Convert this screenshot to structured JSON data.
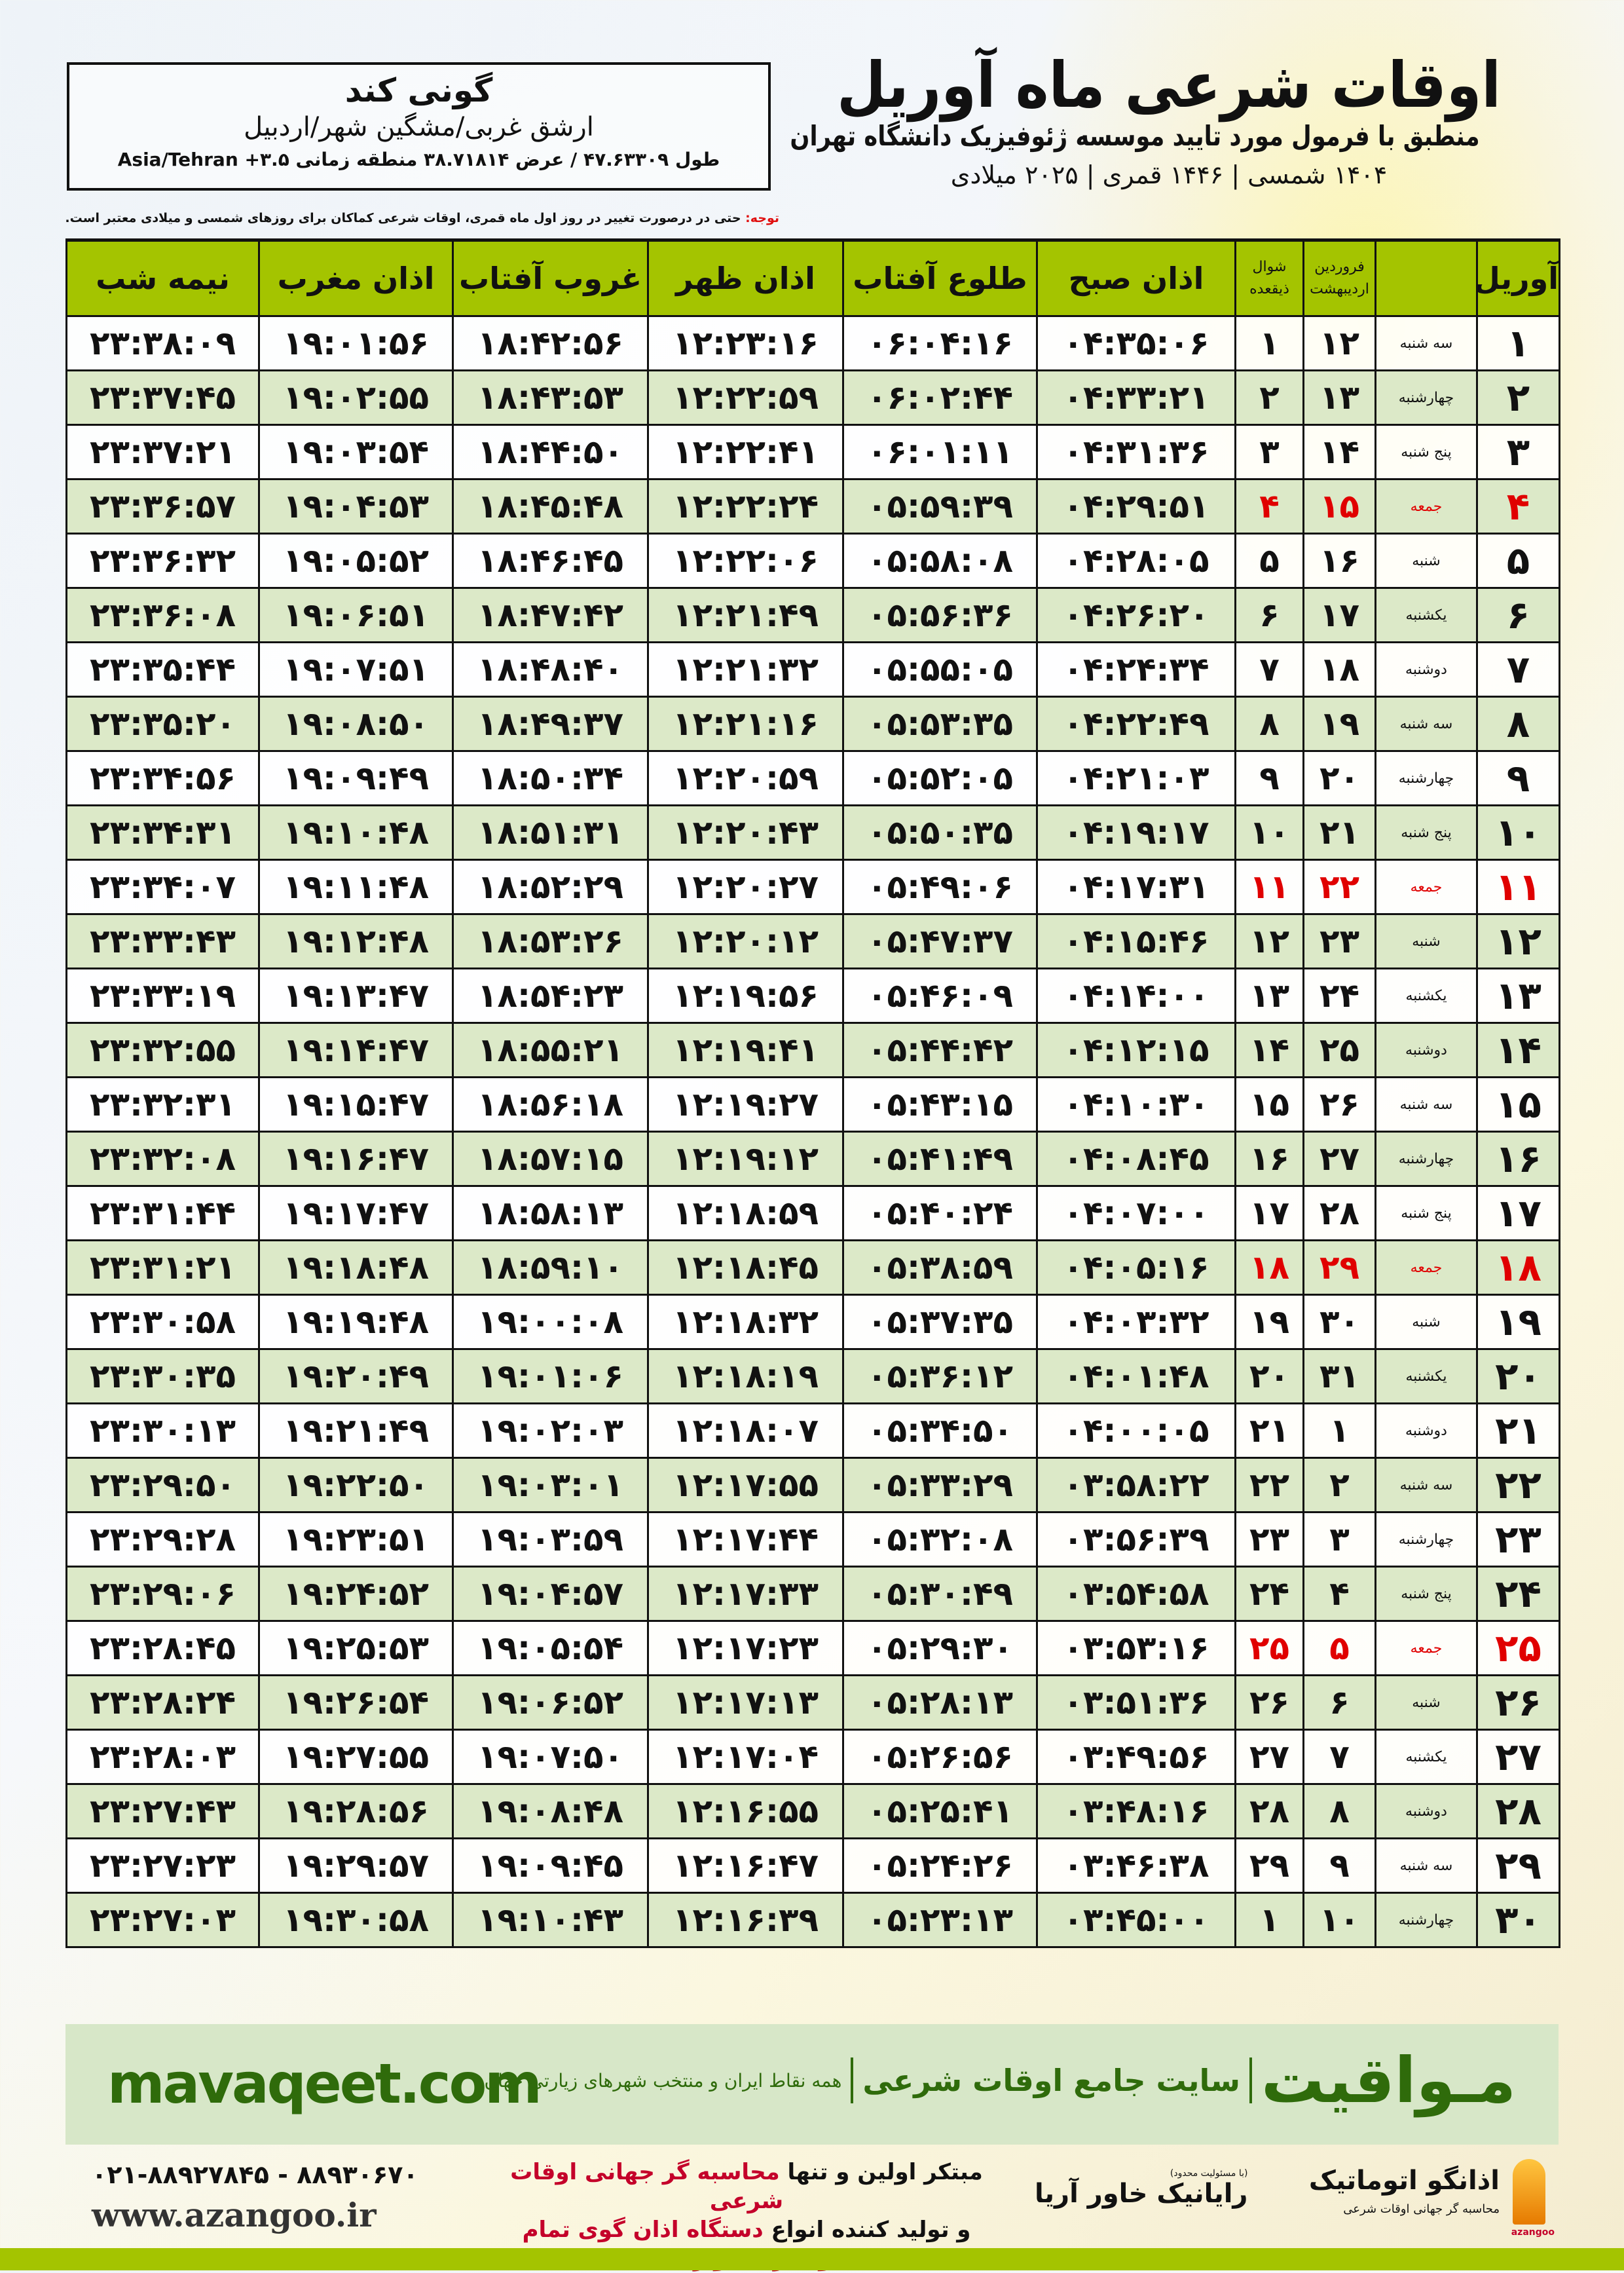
{
  "colors": {
    "header_green": "#a4c400",
    "row_green": "#dce9c8",
    "friday_red": "#e00000",
    "brand_green": "#2f6b0b",
    "promo_red": "#c4002a"
  },
  "location": {
    "city": "گونی کند",
    "region": "ارشق غربی/مشگین شهر/اردبیل",
    "coords": "طول ۴۷.۶۳۳۰۹ / عرض ۳۸.۷۱۸۱۴ منطقه زمانی ۳.۵+ Asia/Tehran"
  },
  "header": {
    "title": "اوقات شرعی ماه آوریل",
    "subtitle": "منطبق با فرمول مورد تایید موسسه ژئوفیزیک دانشگاه تهران",
    "years": "۱۴۰۴ شمسی | ۱۴۴۶ قمری | ۲۰۲۵ میلادی"
  },
  "note": {
    "label": "توجه:",
    "text": " حتی در درصورت تغییر در روز اول ماه قمری، اوقات شرعی کماکان برای روزهای شمسی و میلادی معتبر است."
  },
  "table": {
    "columns": {
      "day": "آوریل",
      "persian_1": "فروردین",
      "persian_2": "اردیبهشت",
      "hijri_1": "شوال",
      "hijri_2": "ذیقعده",
      "fajr": "اذان صبح",
      "sunrise": "طلوع آفتاب",
      "dhuhr": "اذان ظهر",
      "sunset": "غروب آفتاب",
      "maghrib": "اذان مغرب",
      "midnight": "نیمه شب"
    },
    "rows": [
      [
        "۱",
        "سه شنبه",
        "۱۲",
        "۱",
        "۰۴:۳۵:۰۶",
        "۰۶:۰۴:۱۶",
        "۱۲:۲۳:۱۶",
        "۱۸:۴۲:۵۶",
        "۱۹:۰۱:۵۶",
        "۲۳:۳۸:۰۹"
      ],
      [
        "۲",
        "چهارشنبه",
        "۱۳",
        "۲",
        "۰۴:۳۳:۲۱",
        "۰۶:۰۲:۴۴",
        "۱۲:۲۲:۵۹",
        "۱۸:۴۳:۵۳",
        "۱۹:۰۲:۵۵",
        "۲۳:۳۷:۴۵"
      ],
      [
        "۳",
        "پنج شنبه",
        "۱۴",
        "۳",
        "۰۴:۳۱:۳۶",
        "۰۶:۰۱:۱۱",
        "۱۲:۲۲:۴۱",
        "۱۸:۴۴:۵۰",
        "۱۹:۰۳:۵۴",
        "۲۳:۳۷:۲۱"
      ],
      [
        "۴",
        "جمعه",
        "۱۵",
        "۴",
        "۰۴:۲۹:۵۱",
        "۰۵:۵۹:۳۹",
        "۱۲:۲۲:۲۴",
        "۱۸:۴۵:۴۸",
        "۱۹:۰۴:۵۳",
        "۲۳:۳۶:۵۷"
      ],
      [
        "۵",
        "شنبه",
        "۱۶",
        "۵",
        "۰۴:۲۸:۰۵",
        "۰۵:۵۸:۰۸",
        "۱۲:۲۲:۰۶",
        "۱۸:۴۶:۴۵",
        "۱۹:۰۵:۵۲",
        "۲۳:۳۶:۳۲"
      ],
      [
        "۶",
        "یکشنبه",
        "۱۷",
        "۶",
        "۰۴:۲۶:۲۰",
        "۰۵:۵۶:۳۶",
        "۱۲:۲۱:۴۹",
        "۱۸:۴۷:۴۲",
        "۱۹:۰۶:۵۱",
        "۲۳:۳۶:۰۸"
      ],
      [
        "۷",
        "دوشنبه",
        "۱۸",
        "۷",
        "۰۴:۲۴:۳۴",
        "۰۵:۵۵:۰۵",
        "۱۲:۲۱:۳۲",
        "۱۸:۴۸:۴۰",
        "۱۹:۰۷:۵۱",
        "۲۳:۳۵:۴۴"
      ],
      [
        "۸",
        "سه شنبه",
        "۱۹",
        "۸",
        "۰۴:۲۲:۴۹",
        "۰۵:۵۳:۳۵",
        "۱۲:۲۱:۱۶",
        "۱۸:۴۹:۳۷",
        "۱۹:۰۸:۵۰",
        "۲۳:۳۵:۲۰"
      ],
      [
        "۹",
        "چهارشنبه",
        "۲۰",
        "۹",
        "۰۴:۲۱:۰۳",
        "۰۵:۵۲:۰۵",
        "۱۲:۲۰:۵۹",
        "۱۸:۵۰:۳۴",
        "۱۹:۰۹:۴۹",
        "۲۳:۳۴:۵۶"
      ],
      [
        "۱۰",
        "پنج شنبه",
        "۲۱",
        "۱۰",
        "۰۴:۱۹:۱۷",
        "۰۵:۵۰:۳۵",
        "۱۲:۲۰:۴۳",
        "۱۸:۵۱:۳۱",
        "۱۹:۱۰:۴۸",
        "۲۳:۳۴:۳۱"
      ],
      [
        "۱۱",
        "جمعه",
        "۲۲",
        "۱۱",
        "۰۴:۱۷:۳۱",
        "۰۵:۴۹:۰۶",
        "۱۲:۲۰:۲۷",
        "۱۸:۵۲:۲۹",
        "۱۹:۱۱:۴۸",
        "۲۳:۳۴:۰۷"
      ],
      [
        "۱۲",
        "شنبه",
        "۲۳",
        "۱۲",
        "۰۴:۱۵:۴۶",
        "۰۵:۴۷:۳۷",
        "۱۲:۲۰:۱۲",
        "۱۸:۵۳:۲۶",
        "۱۹:۱۲:۴۸",
        "۲۳:۳۳:۴۳"
      ],
      [
        "۱۳",
        "یکشنبه",
        "۲۴",
        "۱۳",
        "۰۴:۱۴:۰۰",
        "۰۵:۴۶:۰۹",
        "۱۲:۱۹:۵۶",
        "۱۸:۵۴:۲۳",
        "۱۹:۱۳:۴۷",
        "۲۳:۳۳:۱۹"
      ],
      [
        "۱۴",
        "دوشنبه",
        "۲۵",
        "۱۴",
        "۰۴:۱۲:۱۵",
        "۰۵:۴۴:۴۲",
        "۱۲:۱۹:۴۱",
        "۱۸:۵۵:۲۱",
        "۱۹:۱۴:۴۷",
        "۲۳:۳۲:۵۵"
      ],
      [
        "۱۵",
        "سه شنبه",
        "۲۶",
        "۱۵",
        "۰۴:۱۰:۳۰",
        "۰۵:۴۳:۱۵",
        "۱۲:۱۹:۲۷",
        "۱۸:۵۶:۱۸",
        "۱۹:۱۵:۴۷",
        "۲۳:۳۲:۳۱"
      ],
      [
        "۱۶",
        "چهارشنبه",
        "۲۷",
        "۱۶",
        "۰۴:۰۸:۴۵",
        "۰۵:۴۱:۴۹",
        "۱۲:۱۹:۱۲",
        "۱۸:۵۷:۱۵",
        "۱۹:۱۶:۴۷",
        "۲۳:۳۲:۰۸"
      ],
      [
        "۱۷",
        "پنج شنبه",
        "۲۸",
        "۱۷",
        "۰۴:۰۷:۰۰",
        "۰۵:۴۰:۲۴",
        "۱۲:۱۸:۵۹",
        "۱۸:۵۸:۱۳",
        "۱۹:۱۷:۴۷",
        "۲۳:۳۱:۴۴"
      ],
      [
        "۱۸",
        "جمعه",
        "۲۹",
        "۱۸",
        "۰۴:۰۵:۱۶",
        "۰۵:۳۸:۵۹",
        "۱۲:۱۸:۴۵",
        "۱۸:۵۹:۱۰",
        "۱۹:۱۸:۴۸",
        "۲۳:۳۱:۲۱"
      ],
      [
        "۱۹",
        "شنبه",
        "۳۰",
        "۱۹",
        "۰۴:۰۳:۳۲",
        "۰۵:۳۷:۳۵",
        "۱۲:۱۸:۳۲",
        "۱۹:۰۰:۰۸",
        "۱۹:۱۹:۴۸",
        "۲۳:۳۰:۵۸"
      ],
      [
        "۲۰",
        "یکشنبه",
        "۳۱",
        "۲۰",
        "۰۴:۰۱:۴۸",
        "۰۵:۳۶:۱۲",
        "۱۲:۱۸:۱۹",
        "۱۹:۰۱:۰۶",
        "۱۹:۲۰:۴۹",
        "۲۳:۳۰:۳۵"
      ],
      [
        "۲۱",
        "دوشنبه",
        "۱",
        "۲۱",
        "۰۴:۰۰:۰۵",
        "۰۵:۳۴:۵۰",
        "۱۲:۱۸:۰۷",
        "۱۹:۰۲:۰۳",
        "۱۹:۲۱:۴۹",
        "۲۳:۳۰:۱۳"
      ],
      [
        "۲۲",
        "سه شنبه",
        "۲",
        "۲۲",
        "۰۳:۵۸:۲۲",
        "۰۵:۳۳:۲۹",
        "۱۲:۱۷:۵۵",
        "۱۹:۰۳:۰۱",
        "۱۹:۲۲:۵۰",
        "۲۳:۲۹:۵۰"
      ],
      [
        "۲۳",
        "چهارشنبه",
        "۳",
        "۲۳",
        "۰۳:۵۶:۳۹",
        "۰۵:۳۲:۰۸",
        "۱۲:۱۷:۴۴",
        "۱۹:۰۳:۵۹",
        "۱۹:۲۳:۵۱",
        "۲۳:۲۹:۲۸"
      ],
      [
        "۲۴",
        "پنج شنبه",
        "۴",
        "۲۴",
        "۰۳:۵۴:۵۸",
        "۰۵:۳۰:۴۹",
        "۱۲:۱۷:۳۳",
        "۱۹:۰۴:۵۷",
        "۱۹:۲۴:۵۲",
        "۲۳:۲۹:۰۶"
      ],
      [
        "۲۵",
        "جمعه",
        "۵",
        "۲۵",
        "۰۳:۵۳:۱۶",
        "۰۵:۲۹:۳۰",
        "۱۲:۱۷:۲۳",
        "۱۹:۰۵:۵۴",
        "۱۹:۲۵:۵۳",
        "۲۳:۲۸:۴۵"
      ],
      [
        "۲۶",
        "شنبه",
        "۶",
        "۲۶",
        "۰۳:۵۱:۳۶",
        "۰۵:۲۸:۱۳",
        "۱۲:۱۷:۱۳",
        "۱۹:۰۶:۵۲",
        "۱۹:۲۶:۵۴",
        "۲۳:۲۸:۲۴"
      ],
      [
        "۲۷",
        "یکشنبه",
        "۷",
        "۲۷",
        "۰۳:۴۹:۵۶",
        "۰۵:۲۶:۵۶",
        "۱۲:۱۷:۰۴",
        "۱۹:۰۷:۵۰",
        "۱۹:۲۷:۵۵",
        "۲۳:۲۸:۰۳"
      ],
      [
        "۲۸",
        "دوشنبه",
        "۸",
        "۲۸",
        "۰۳:۴۸:۱۶",
        "۰۵:۲۵:۴۱",
        "۱۲:۱۶:۵۵",
        "۱۹:۰۸:۴۸",
        "۱۹:۲۸:۵۶",
        "۲۳:۲۷:۴۳"
      ],
      [
        "۲۹",
        "سه شنبه",
        "۹",
        "۲۹",
        "۰۳:۴۶:۳۸",
        "۰۵:۲۴:۲۶",
        "۱۲:۱۶:۴۷",
        "۱۹:۰۹:۴۵",
        "۱۹:۲۹:۵۷",
        "۲۳:۲۷:۲۳"
      ],
      [
        "۳۰",
        "چهارشنبه",
        "۱۰",
        "۱",
        "۰۳:۴۵:۰۰",
        "۰۵:۲۳:۱۳",
        "۱۲:۱۶:۳۹",
        "۱۹:۱۰:۴۳",
        "۱۹:۳۰:۵۸",
        "۲۳:۲۷:۰۳"
      ]
    ]
  },
  "banner": {
    "logo": "مـواقیت",
    "slogan": "سایت جامع اوقات شرعی",
    "tagline": "همه نقاط ایران و منتخب شهرهای زیارتی جهان",
    "site": "mavaqeet.com"
  },
  "footer": {
    "phones": "۰۲۱-۸۸۹۲۷۸۴۵ - ۸۸۹۳۰۶۷۰",
    "website": "www.azangoo.ir",
    "promo_1a": "مبتکر اولین و تنها ",
    "promo_1b": "محاسبه گر جهانی اوقات شرعی",
    "promo_2a": "و تولید کننده انواع ",
    "promo_2b": "دستگاه اذان گوی تمام خودکار ماهواره ای",
    "partner_note": "(با مسئولیت محدود)",
    "partner": "رایانیک خاور آریا",
    "company": "اذانگو اتوماتیک",
    "company_desc": "محاسبه گر جهانی اوقات شرعی",
    "company_en": "azangoo"
  }
}
